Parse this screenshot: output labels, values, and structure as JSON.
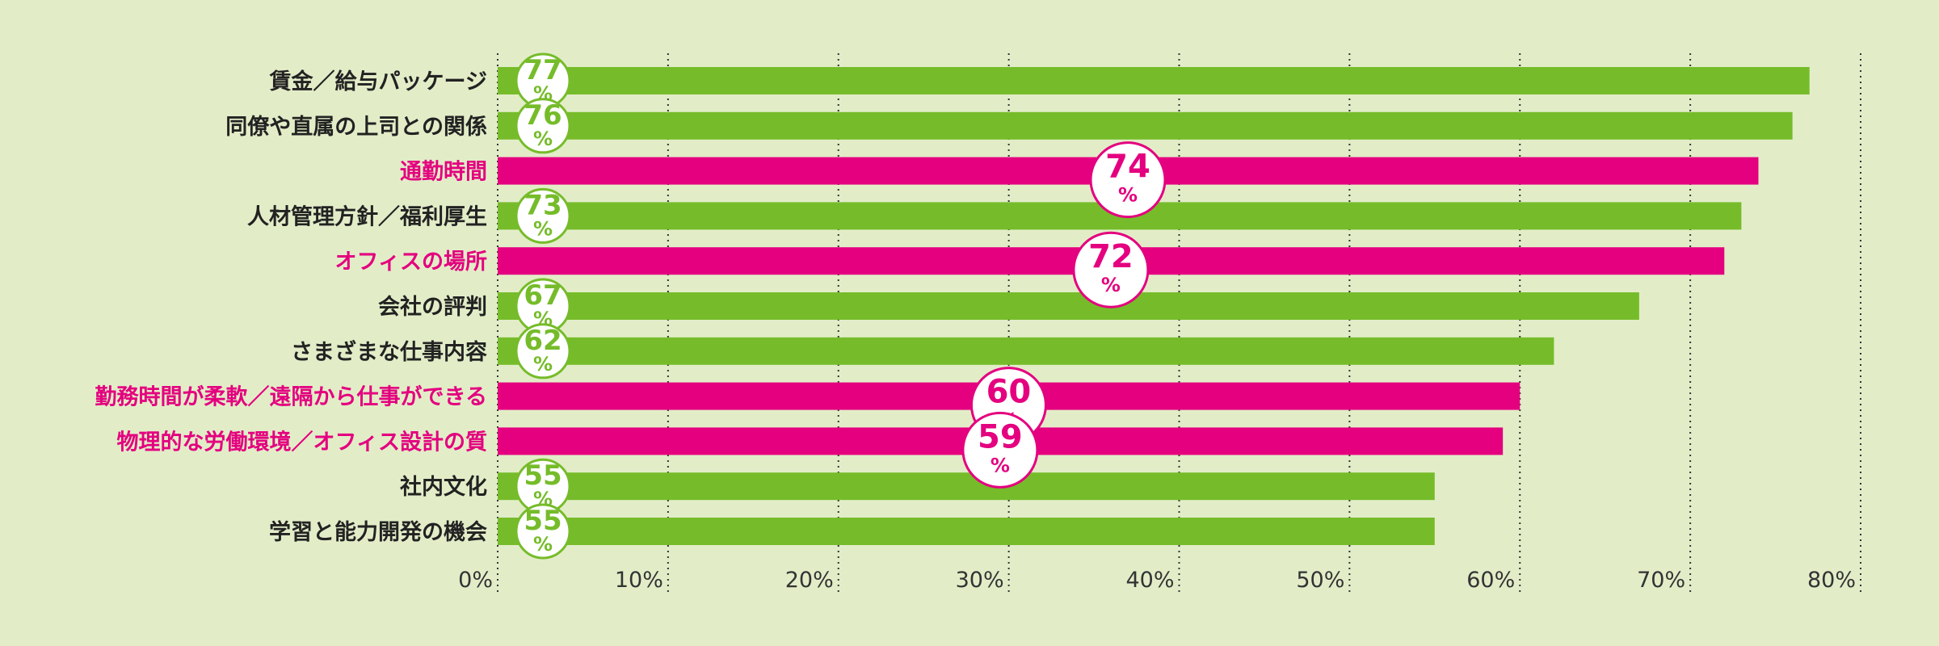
{
  "colors": {
    "background": "#e2edc8",
    "standard_bar": "#76bc2a",
    "highlight_bar": "#e4007f",
    "label_text": "#222222",
    "gridline": "#333333"
  },
  "chart_data": {
    "type": "bar",
    "orientation": "horizontal",
    "categories": [
      "賃金／給与パッケージ",
      "同僚や直属の上司との関係",
      "通勤時間",
      "人材管理方針／福利厚生",
      "オフィスの場所",
      "会社の評判",
      "さまざまな仕事内容",
      "勤務時間が柔軟／遠隔から仕事ができる",
      "物理的な労働環境／オフィス設計の質",
      "社内文化",
      "学習と能力開発の機会"
    ],
    "values": [
      77,
      76,
      74,
      73,
      72,
      67,
      62,
      60,
      59,
      55,
      55
    ],
    "value_labels": [
      "77",
      "76",
      "74",
      "73",
      "72",
      "67",
      "62",
      "60",
      "59",
      "55",
      "55"
    ],
    "value_unit": "%",
    "highlighted": [
      false,
      false,
      true,
      false,
      true,
      false,
      false,
      true,
      true,
      false,
      false
    ],
    "xlim": [
      0,
      80
    ],
    "xticks": [
      "0%",
      "10%",
      "20%",
      "30%",
      "40%",
      "50%",
      "60%",
      "70%",
      "80%"
    ],
    "grid": "vertical dotted",
    "legend": "none"
  }
}
